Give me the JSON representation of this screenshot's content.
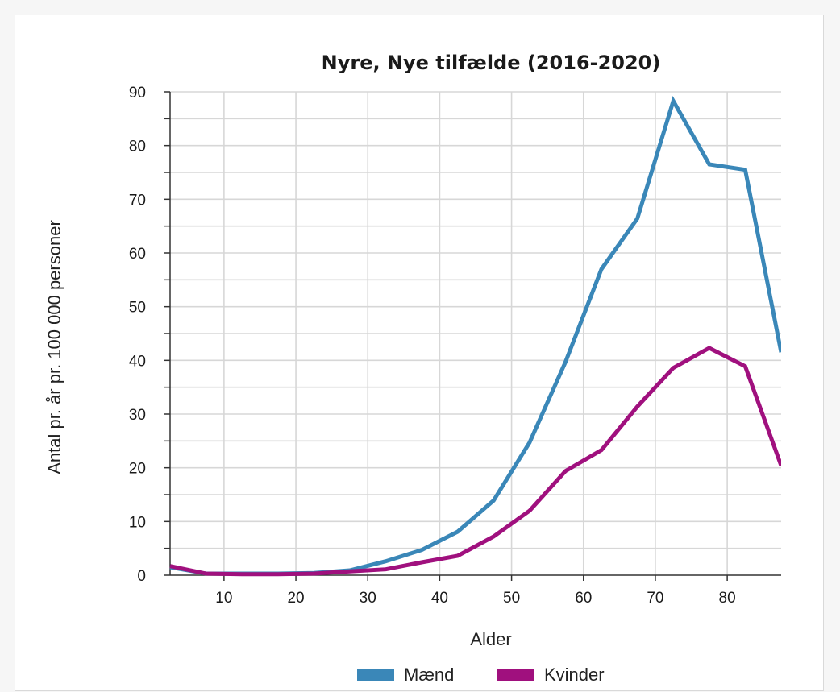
{
  "chart_data": {
    "type": "line",
    "title": "Nyre, Nye tilfælde (2016-2020)",
    "xlabel": "Alder",
    "ylabel": "Antal pr. år pr. 100 000 personer",
    "xlim": [
      2.5,
      87.5
    ],
    "ylim": [
      0,
      90
    ],
    "xticks": [
      10,
      20,
      30,
      40,
      50,
      60,
      70,
      80
    ],
    "yticks": [
      0,
      10,
      20,
      30,
      40,
      50,
      60,
      70,
      80,
      90
    ],
    "grid": true,
    "legend": "bottom",
    "series": [
      {
        "name": "Mænd",
        "color": "#3a87b8",
        "x": [
          2.5,
          7.5,
          12.5,
          17.5,
          22.5,
          27.5,
          32.5,
          37.5,
          42.5,
          47.5,
          52.5,
          57.5,
          62.5,
          67.5,
          72.5,
          77.5,
          82.5,
          87.5
        ],
        "values": [
          1.5,
          0.3,
          0.3,
          0.3,
          0.4,
          0.9,
          2.6,
          4.7,
          8.1,
          13.9,
          24.7,
          39.7,
          57.0,
          66.4,
          88.3,
          76.5,
          75.5,
          41.5
        ]
      },
      {
        "name": "Kvinder",
        "color": "#a0107e",
        "x": [
          2.5,
          7.5,
          12.5,
          17.5,
          22.5,
          27.5,
          32.5,
          37.5,
          42.5,
          47.5,
          52.5,
          57.5,
          62.5,
          67.5,
          72.5,
          77.5,
          82.5,
          87.5
        ],
        "values": [
          1.7,
          0.3,
          0.2,
          0.2,
          0.3,
          0.7,
          1.1,
          2.4,
          3.6,
          7.2,
          12.0,
          19.4,
          23.3,
          31.4,
          38.6,
          42.3,
          38.9,
          20.4
        ]
      }
    ]
  }
}
